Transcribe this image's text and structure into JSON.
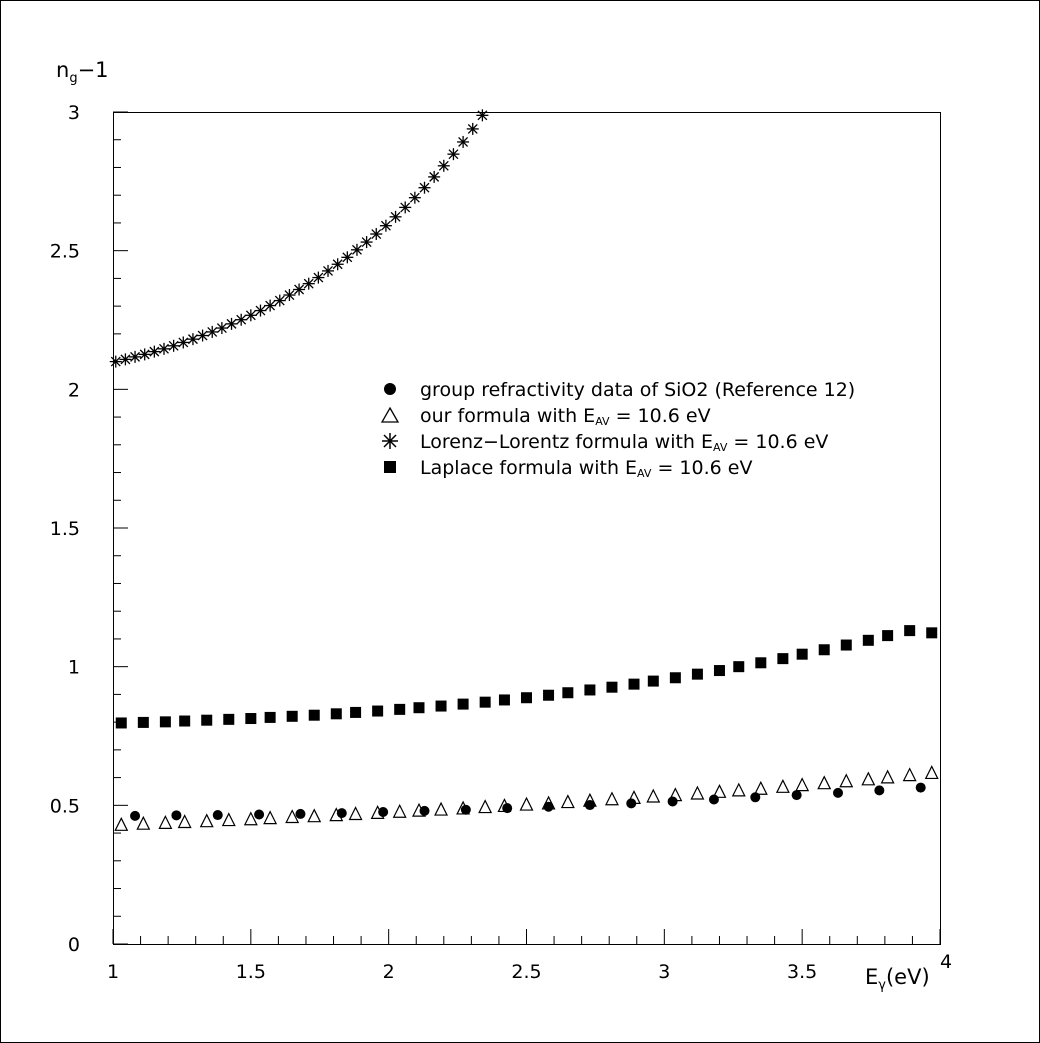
{
  "chart_data": {
    "type": "scatter",
    "title": "",
    "ylabel": {
      "base": "n",
      "sub": "g",
      "rest": "−1"
    },
    "xlabel": {
      "base": "E",
      "sub": "γ",
      "rest": "(eV)"
    },
    "xlim": [
      1,
      4
    ],
    "ylim": [
      0,
      3
    ],
    "x_ticks": [
      "1",
      "1.5",
      "2",
      "2.5",
      "3",
      "3.5",
      "4"
    ],
    "y_ticks": [
      "0",
      "0.5",
      "1",
      "1.5",
      "2",
      "2.5",
      "3"
    ],
    "grid": false,
    "legend_position": "center",
    "legend": [
      {
        "marker": "circle",
        "text": "group refractivity data of SiO2 (Reference 12)"
      },
      {
        "marker": "triangle",
        "pre": "our formula with E",
        "sub": "AV",
        "post": " = 10.6 eV"
      },
      {
        "marker": "star",
        "pre": "Lorenz−Lorentz formula with E",
        "sub": "AV",
        "post": " = 10.6 eV"
      },
      {
        "marker": "square",
        "pre": "Laplace formula with E",
        "sub": "AV",
        "post": " = 10.6 eV"
      }
    ],
    "series": [
      {
        "name": "group refractivity data of SiO2 (Reference 12)",
        "marker": "circle",
        "x": [
          1.08,
          1.23,
          1.38,
          1.53,
          1.68,
          1.83,
          1.98,
          2.13,
          2.28,
          2.43,
          2.58,
          2.73,
          2.88,
          3.03,
          3.18,
          3.33,
          3.48,
          3.63,
          3.78,
          3.93
        ],
        "y": [
          0.462,
          0.464,
          0.465,
          0.467,
          0.469,
          0.472,
          0.476,
          0.48,
          0.484,
          0.49,
          0.495,
          0.501,
          0.507,
          0.514,
          0.521,
          0.529,
          0.537,
          0.545,
          0.554,
          0.564
        ]
      },
      {
        "name": "our formula with E_AV = 10.6 eV",
        "marker": "triangle",
        "x": [
          1.03,
          1.11,
          1.19,
          1.26,
          1.34,
          1.42,
          1.5,
          1.57,
          1.65,
          1.73,
          1.81,
          1.88,
          1.96,
          2.04,
          2.11,
          2.19,
          2.27,
          2.35,
          2.42,
          2.5,
          2.58,
          2.65,
          2.73,
          2.81,
          2.89,
          2.96,
          3.04,
          3.12,
          3.2,
          3.27,
          3.35,
          3.43,
          3.5,
          3.58,
          3.66,
          3.74,
          3.81,
          3.89,
          3.97
        ],
        "y": [
          0.428,
          0.432,
          0.435,
          0.438,
          0.441,
          0.445,
          0.448,
          0.452,
          0.456,
          0.459,
          0.463,
          0.467,
          0.471,
          0.475,
          0.479,
          0.483,
          0.487,
          0.492,
          0.496,
          0.501,
          0.505,
          0.51,
          0.515,
          0.52,
          0.525,
          0.53,
          0.535,
          0.541,
          0.547,
          0.552,
          0.558,
          0.565,
          0.571,
          0.578,
          0.585,
          0.592,
          0.599,
          0.607,
          0.615
        ]
      },
      {
        "name": "Lorenz−Lorentz formula with E_AV = 10.6 eV",
        "marker": "star",
        "x": [
          1.01,
          1.045,
          1.08,
          1.115,
          1.15,
          1.185,
          1.22,
          1.255,
          1.29,
          1.325,
          1.36,
          1.395,
          1.43,
          1.465,
          1.5,
          1.535,
          1.57,
          1.605,
          1.64,
          1.675,
          1.71,
          1.745,
          1.78,
          1.815,
          1.85,
          1.885,
          1.92,
          1.955,
          1.99,
          2.025,
          2.06,
          2.095,
          2.13,
          2.165,
          2.2,
          2.235,
          2.27,
          2.305,
          2.34
        ],
        "y": [
          2.1,
          2.108,
          2.117,
          2.126,
          2.136,
          2.146,
          2.157,
          2.169,
          2.181,
          2.194,
          2.207,
          2.221,
          2.236,
          2.251,
          2.267,
          2.284,
          2.302,
          2.32,
          2.34,
          2.36,
          2.381,
          2.403,
          2.427,
          2.451,
          2.476,
          2.503,
          2.531,
          2.56,
          2.59,
          2.622,
          2.656,
          2.691,
          2.727,
          2.766,
          2.806,
          2.848,
          2.892,
          2.939,
          2.988
        ]
      },
      {
        "name": "Laplace formula with E_AV = 10.6 eV",
        "marker": "square",
        "x": [
          1.03,
          1.11,
          1.19,
          1.26,
          1.34,
          1.42,
          1.5,
          1.57,
          1.65,
          1.73,
          1.81,
          1.88,
          1.96,
          2.04,
          2.11,
          2.19,
          2.27,
          2.35,
          2.42,
          2.5,
          2.58,
          2.65,
          2.73,
          2.81,
          2.89,
          2.96,
          3.04,
          3.12,
          3.2,
          3.27,
          3.35,
          3.43,
          3.5,
          3.58,
          3.66,
          3.74,
          3.81,
          3.89,
          3.97
        ],
        "y": [
          0.797,
          0.799,
          0.801,
          0.804,
          0.807,
          0.81,
          0.813,
          0.817,
          0.821,
          0.825,
          0.83,
          0.835,
          0.84,
          0.846,
          0.852,
          0.858,
          0.865,
          0.872,
          0.88,
          0.888,
          0.897,
          0.906,
          0.916,
          0.926,
          0.937,
          0.948,
          0.96,
          0.973,
          0.986,
          1.0,
          1.014,
          1.029,
          1.045,
          1.061,
          1.078,
          1.095,
          1.112,
          1.13,
          1.122
        ]
      }
    ]
  }
}
